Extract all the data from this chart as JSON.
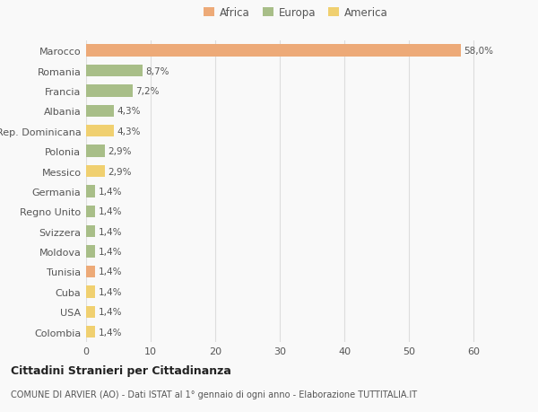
{
  "countries": [
    "Marocco",
    "Romania",
    "Francia",
    "Albania",
    "Rep. Dominicana",
    "Polonia",
    "Messico",
    "Germania",
    "Regno Unito",
    "Svizzera",
    "Moldova",
    "Tunisia",
    "Cuba",
    "USA",
    "Colombia"
  ],
  "values": [
    58.0,
    8.7,
    7.2,
    4.3,
    4.3,
    2.9,
    2.9,
    1.4,
    1.4,
    1.4,
    1.4,
    1.4,
    1.4,
    1.4,
    1.4
  ],
  "labels": [
    "58,0%",
    "8,7%",
    "7,2%",
    "4,3%",
    "4,3%",
    "2,9%",
    "2,9%",
    "1,4%",
    "1,4%",
    "1,4%",
    "1,4%",
    "1,4%",
    "1,4%",
    "1,4%",
    "1,4%"
  ],
  "continents": [
    "Africa",
    "Europa",
    "Europa",
    "Europa",
    "America",
    "Europa",
    "America",
    "Europa",
    "Europa",
    "Europa",
    "Europa",
    "Africa",
    "America",
    "America",
    "America"
  ],
  "colors": {
    "Africa": "#EDAA78",
    "Europa": "#A8BE88",
    "America": "#F0D070"
  },
  "xlim": [
    0,
    65
  ],
  "xticks": [
    0,
    10,
    20,
    30,
    40,
    50,
    60
  ],
  "background_color": "#f9f9f9",
  "grid_color": "#dddddd",
  "title1": "Cittadini Stranieri per Cittadinanza",
  "title2": "COMUNE DI ARVIER (AO) - Dati ISTAT al 1° gennaio di ogni anno - Elaborazione TUTTITALIA.IT",
  "bar_height": 0.6
}
